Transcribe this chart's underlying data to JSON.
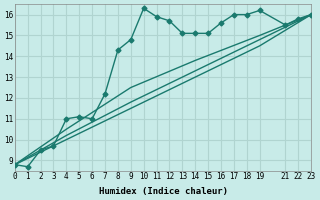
{
  "xlabel": "Humidex (Indice chaleur)",
  "background_color": "#c8ebe8",
  "grid_color": "#b0d4d0",
  "line_color": "#1a7a6e",
  "xlim": [
    0,
    23
  ],
  "ylim": [
    8.5,
    16.5
  ],
  "yticks": [
    9,
    10,
    11,
    12,
    13,
    14,
    15,
    16
  ],
  "xticks": [
    0,
    1,
    2,
    3,
    4,
    5,
    6,
    7,
    8,
    9,
    10,
    11,
    12,
    13,
    14,
    15,
    16,
    17,
    18,
    19,
    21,
    22,
    23
  ],
  "series1_x": [
    0,
    1,
    2,
    3,
    4,
    5,
    6,
    7,
    8,
    9,
    10,
    11,
    12,
    13,
    14,
    15,
    16,
    17,
    18,
    19,
    21,
    22,
    23
  ],
  "series1_y": [
    8.8,
    8.7,
    9.5,
    9.7,
    11.0,
    11.1,
    11.0,
    12.2,
    14.3,
    14.8,
    16.3,
    15.9,
    15.7,
    15.1,
    15.1,
    15.1,
    15.6,
    16.0,
    16.0,
    16.2,
    15.5,
    15.8,
    16.0
  ],
  "series2_x": [
    0,
    4,
    9,
    14,
    19,
    23
  ],
  "series2_y": [
    8.8,
    10.0,
    11.5,
    13.0,
    14.5,
    16.0
  ],
  "series3_x": [
    0,
    4,
    9,
    14,
    19,
    23
  ],
  "series3_y": [
    8.8,
    10.2,
    11.8,
    13.3,
    14.8,
    16.0
  ],
  "series4_x": [
    0,
    4,
    9,
    14,
    19,
    23
  ],
  "series4_y": [
    8.8,
    10.5,
    12.5,
    13.8,
    15.0,
    16.0
  ]
}
